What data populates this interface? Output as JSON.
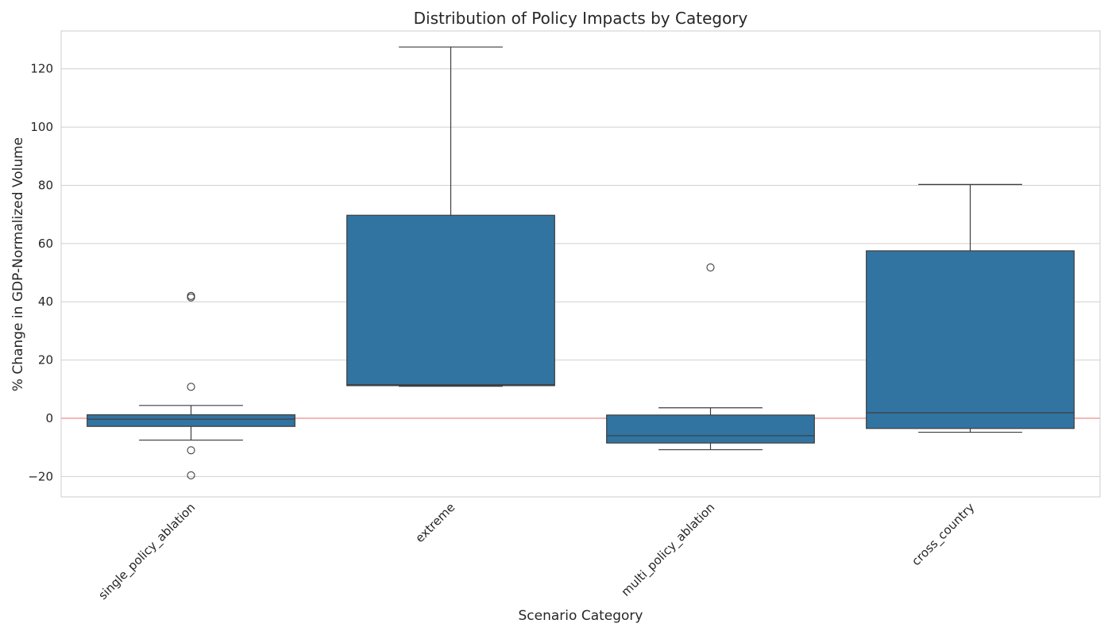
{
  "chart_data": {
    "type": "box",
    "title": "Distribution of Policy Impacts by Category",
    "xlabel": "Scenario Category",
    "ylabel": "% Change in GDP-Normalized Volume",
    "ylim": [
      -27,
      133
    ],
    "yticks": [
      -20,
      0,
      20,
      40,
      60,
      80,
      100,
      120
    ],
    "grid": true,
    "reference_line_y": 0,
    "colors": {
      "box_fill": "#3274a1",
      "box_edge": "#3d3d3d",
      "grid": "#d0d0d0",
      "reference_line": "#e87d7d",
      "text": "#262626"
    },
    "categories": [
      "single_policy_ablation",
      "extreme",
      "multi_policy_ablation",
      "cross_country"
    ],
    "boxes": [
      {
        "category": "single_policy_ablation",
        "whisker_low": -7.5,
        "q1": -2.8,
        "median": -0.3,
        "q3": 1.2,
        "whisker_high": 4.4,
        "outliers": [
          42.0,
          41.5,
          10.8,
          -11.0,
          -19.6
        ]
      },
      {
        "category": "extreme",
        "whisker_low": 11.0,
        "q1": 11.2,
        "median": 11.5,
        "q3": 69.7,
        "whisker_high": 127.5,
        "outliers": []
      },
      {
        "category": "multi_policy_ablation",
        "whisker_low": -10.8,
        "q1": -8.5,
        "median": -6.0,
        "q3": 1.1,
        "whisker_high": 3.6,
        "outliers": [
          51.8
        ]
      },
      {
        "category": "cross_country",
        "whisker_low": -4.8,
        "q1": -3.5,
        "median": 1.9,
        "q3": 57.5,
        "whisker_high": 80.3,
        "outliers": []
      }
    ]
  }
}
